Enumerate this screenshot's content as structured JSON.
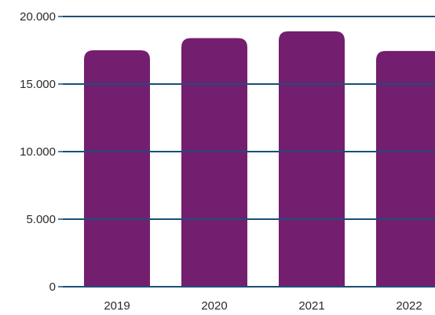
{
  "chart_data": {
    "type": "bar",
    "title": "",
    "xlabel": "",
    "ylabel": "",
    "categories": [
      "2019",
      "2020",
      "2021",
      "2022"
    ],
    "values": [
      17500,
      18400,
      18900,
      17450
    ],
    "ylim": [
      0,
      20000
    ],
    "yticks": [
      0,
      5000,
      10000,
      15000,
      20000
    ],
    "ytick_labels": [
      "0",
      "5.000",
      "10.000",
      "15.000",
      "20.000"
    ],
    "grid": true,
    "legend": "none",
    "colors": {
      "bar": "#741e6f",
      "grid": "#1d4e79",
      "text": "#2a2a2a"
    }
  }
}
